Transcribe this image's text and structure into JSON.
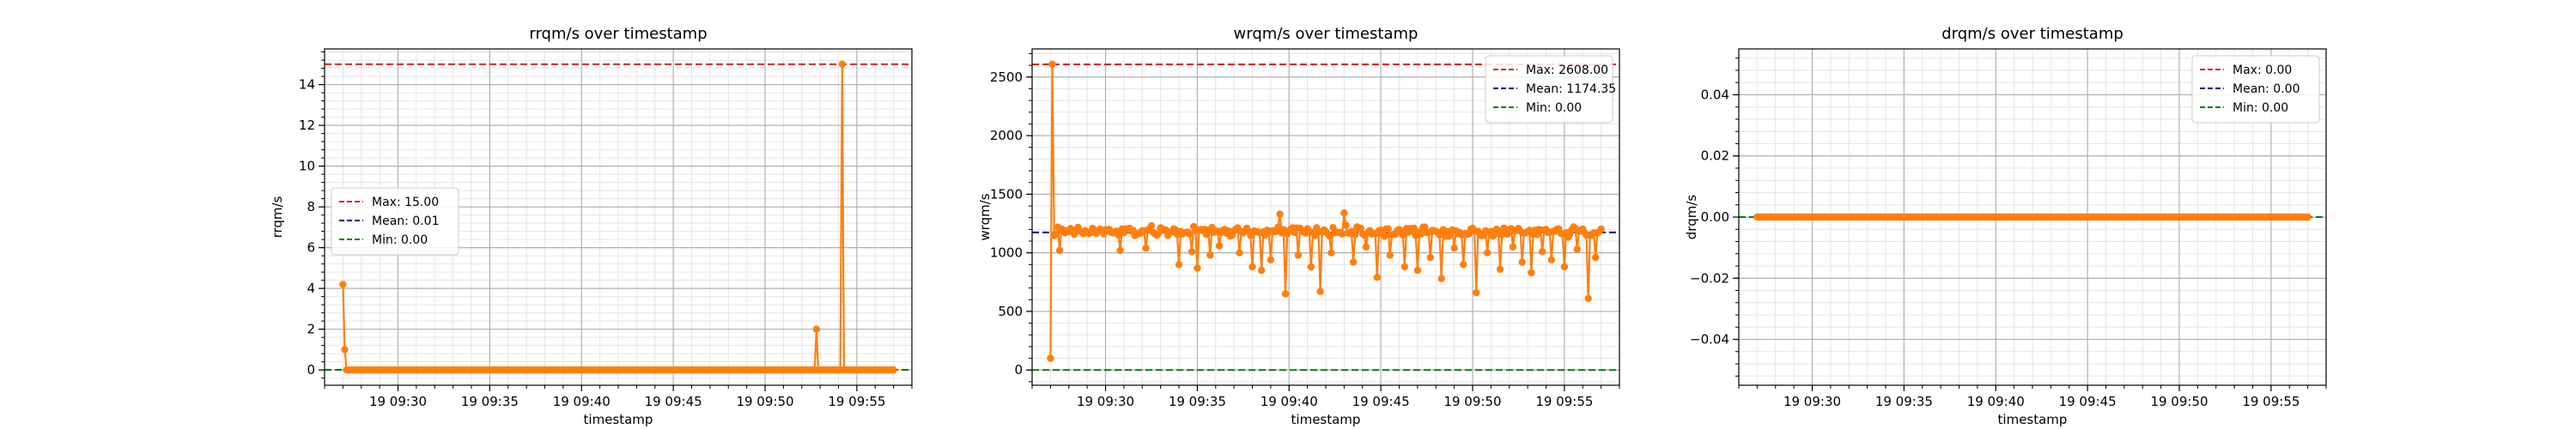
{
  "figure": {
    "background": "#ffffff"
  },
  "colors": {
    "series": "#ff7f0e",
    "max": "#d62728",
    "mean": "#00008b",
    "min": "#008000",
    "grid_major": "#b0b0b0",
    "grid_minor": "#e6e6e6"
  },
  "chart_data": [
    {
      "type": "line",
      "title": "rrqm/s over timestamp",
      "xlabel": "timestamp",
      "ylabel": "rrqm/s",
      "x_range": [
        "19 09:26",
        "19 09:58"
      ],
      "xticks": [
        "19 09:30",
        "19 09:35",
        "19 09:40",
        "19 09:45",
        "19 09:50",
        "19 09:55"
      ],
      "ylim": [
        -0.75,
        15.75
      ],
      "yticks": [
        0,
        2,
        4,
        6,
        8,
        10,
        12,
        14
      ],
      "ytick_labels": [
        "0",
        "2",
        "4",
        "6",
        "8",
        "10",
        "12",
        "14"
      ],
      "grid": true,
      "legend_position": "center-left",
      "legend": [
        "Max: 15.00",
        "Mean: 0.01",
        "Min: 0.00"
      ],
      "reference_lines": {
        "max": 15.0,
        "mean": 0.01,
        "min": 0.0
      },
      "series": [
        {
          "x_start": "19 09:27:00",
          "x_end": "19 09:57:00",
          "baseline": 0,
          "noise": 0,
          "dips": [],
          "spikes": [
            {
              "x": "19 09:27:00",
              "y": 4.2
            },
            {
              "x": "19 09:27:05",
              "y": 1.0
            },
            {
              "x": "19 09:52:50",
              "y": 2.0
            },
            {
              "x": "19 09:54:15",
              "y": 15.0
            }
          ]
        }
      ]
    },
    {
      "type": "line",
      "title": "wrqm/s over timestamp",
      "xlabel": "timestamp",
      "ylabel": "wrqm/s",
      "x_range": [
        "19 09:26",
        "19 09:58"
      ],
      "xticks": [
        "19 09:30",
        "19 09:35",
        "19 09:40",
        "19 09:45",
        "19 09:50",
        "19 09:55"
      ],
      "ylim": [
        -130,
        2740
      ],
      "yticks": [
        0,
        500,
        1000,
        1500,
        2000,
        2500
      ],
      "ytick_labels": [
        "0",
        "500",
        "1000",
        "1500",
        "2000",
        "2500"
      ],
      "grid": true,
      "legend_position": "upper right",
      "legend": [
        "Max: 2608.00",
        "Mean: 1174.35",
        "Min: 0.00"
      ],
      "reference_lines": {
        "max": 2608.0,
        "mean": 1174.35,
        "min": 0.0
      },
      "series": [
        {
          "x_start": "19 09:27:00",
          "x_end": "19 09:57:00",
          "baseline": 1180,
          "noise": 45,
          "spikes": [
            {
              "x": "19 09:27:00",
              "y": 0
            },
            {
              "x": "19 09:27:03",
              "y": 100
            },
            {
              "x": "19 09:27:06",
              "y": 2608
            },
            {
              "x": "19 09:39:30",
              "y": 1330
            },
            {
              "x": "19 09:43:00",
              "y": 1340
            }
          ],
          "dips": [
            {
              "x": "19 09:27:30",
              "y": 1020
            },
            {
              "x": "19 09:30:50",
              "y": 1020
            },
            {
              "x": "19 09:32:10",
              "y": 1040
            },
            {
              "x": "19 09:34:00",
              "y": 900
            },
            {
              "x": "19 09:34:40",
              "y": 1010
            },
            {
              "x": "19 09:35:00",
              "y": 870
            },
            {
              "x": "19 09:35:40",
              "y": 980
            },
            {
              "x": "19 09:36:10",
              "y": 1060
            },
            {
              "x": "19 09:37:20",
              "y": 1000
            },
            {
              "x": "19 09:38:00",
              "y": 880
            },
            {
              "x": "19 09:38:30",
              "y": 850
            },
            {
              "x": "19 09:39:00",
              "y": 940
            },
            {
              "x": "19 09:39:30",
              "y": 710
            },
            {
              "x": "19 09:39:50",
              "y": 650
            },
            {
              "x": "19 09:40:30",
              "y": 980
            },
            {
              "x": "19 09:41:10",
              "y": 880
            },
            {
              "x": "19 09:41:40",
              "y": 670
            },
            {
              "x": "19 09:42:20",
              "y": 1000
            },
            {
              "x": "19 09:43:00",
              "y": 710
            },
            {
              "x": "19 09:43:30",
              "y": 920
            },
            {
              "x": "19 09:44:10",
              "y": 1050
            },
            {
              "x": "19 09:44:50",
              "y": 790
            },
            {
              "x": "19 09:45:30",
              "y": 980
            },
            {
              "x": "19 09:46:20",
              "y": 880
            },
            {
              "x": "19 09:47:00",
              "y": 850
            },
            {
              "x": "19 09:47:40",
              "y": 960
            },
            {
              "x": "19 09:48:20",
              "y": 780
            },
            {
              "x": "19 09:49:00",
              "y": 1040
            },
            {
              "x": "19 09:49:30",
              "y": 900
            },
            {
              "x": "19 09:50:10",
              "y": 660
            },
            {
              "x": "19 09:50:50",
              "y": 1000
            },
            {
              "x": "19 09:51:30",
              "y": 860
            },
            {
              "x": "19 09:52:10",
              "y": 1050
            },
            {
              "x": "19 09:52:40",
              "y": 920
            },
            {
              "x": "19 09:53:10",
              "y": 830
            },
            {
              "x": "19 09:53:50",
              "y": 1010
            },
            {
              "x": "19 09:54:20",
              "y": 940
            },
            {
              "x": "19 09:55:00",
              "y": 880
            },
            {
              "x": "19 09:55:40",
              "y": 1030
            },
            {
              "x": "19 09:56:20",
              "y": 610
            },
            {
              "x": "19 09:56:40",
              "y": 960
            }
          ]
        }
      ]
    },
    {
      "type": "line",
      "title": "drqm/s over timestamp",
      "xlabel": "timestamp",
      "ylabel": "drqm/s",
      "x_range": [
        "19 09:26",
        "19 09:58"
      ],
      "xticks": [
        "19 09:30",
        "19 09:35",
        "19 09:40",
        "19 09:45",
        "19 09:50",
        "19 09:55"
      ],
      "ylim": [
        -0.055,
        0.055
      ],
      "yticks": [
        -0.04,
        -0.02,
        0.0,
        0.02,
        0.04
      ],
      "ytick_labels": [
        "−0.04",
        "−0.02",
        "0.00",
        "0.02",
        "0.04"
      ],
      "grid": true,
      "legend_position": "upper right",
      "legend": [
        "Max: 0.00",
        "Mean: 0.00",
        "Min: 0.00"
      ],
      "reference_lines": {
        "max": 0.0,
        "mean": 0.0,
        "min": 0.0
      },
      "series": [
        {
          "x_start": "19 09:27:00",
          "x_end": "19 09:57:00",
          "baseline": 0,
          "noise": 0,
          "spikes": [],
          "dips": []
        }
      ]
    }
  ]
}
